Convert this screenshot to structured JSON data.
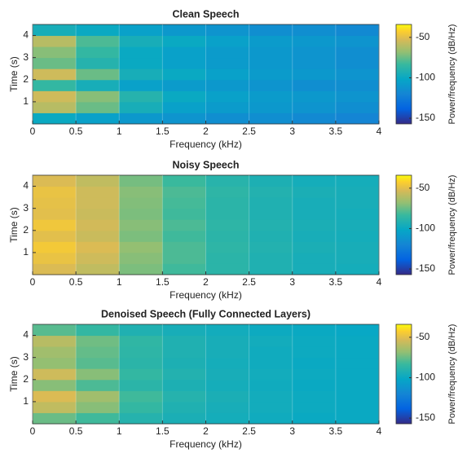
{
  "chart_data": [
    {
      "type": "heatmap",
      "title": "Clean Speech",
      "xlabel": "Frequency (kHz)",
      "ylabel": "Time (s)",
      "colorbar_label": "Power/frequency (dB/Hz)",
      "xlim": [
        0,
        4
      ],
      "ylim": [
        0,
        4.5
      ],
      "xticks": [
        0,
        0.5,
        1,
        1.5,
        2,
        2.5,
        3,
        3.5,
        4
      ],
      "yticks": [
        1,
        2,
        3,
        4
      ],
      "clim": [
        -157,
        -34
      ],
      "cticks": [
        -50,
        -100,
        -150
      ],
      "z": [
        [
          -100,
          -105,
          -110,
          -112,
          -115,
          -115,
          -118,
          -120
        ],
        [
          -60,
          -75,
          -95,
          -105,
          -108,
          -110,
          -112,
          -115
        ],
        [
          -55,
          -70,
          -90,
          -100,
          -105,
          -108,
          -110,
          -112
        ],
        [
          -85,
          -95,
          -105,
          -108,
          -110,
          -112,
          -115,
          -115
        ],
        [
          -55,
          -75,
          -95,
          -100,
          -105,
          -108,
          -110,
          -112
        ],
        [
          -75,
          -90,
          -100,
          -105,
          -108,
          -110,
          -112,
          -115
        ],
        [
          -70,
          -85,
          -100,
          -105,
          -108,
          -110,
          -112,
          -115
        ],
        [
          -60,
          -80,
          -95,
          -100,
          -105,
          -108,
          -110,
          -112
        ],
        [
          -95,
          -100,
          -105,
          -110,
          -112,
          -115,
          -115,
          -118
        ]
      ]
    },
    {
      "type": "heatmap",
      "title": "Noisy Speech",
      "xlabel": "Frequency (kHz)",
      "ylabel": "Time (s)",
      "colorbar_label": "Power/frequency (dB/Hz)",
      "xlim": [
        0,
        4
      ],
      "ylim": [
        0,
        4.5
      ],
      "xticks": [
        0,
        0.5,
        1,
        1.5,
        2,
        2.5,
        3,
        3.5,
        4
      ],
      "yticks": [
        1,
        2,
        3,
        4
      ],
      "clim": [
        -157,
        -34
      ],
      "cticks": [
        -50,
        -100,
        -150
      ],
      "z": [
        [
          -52,
          -58,
          -72,
          -82,
          -88,
          -92,
          -95,
          -96
        ],
        [
          -48,
          -55,
          -70,
          -80,
          -88,
          -92,
          -95,
          -95
        ],
        [
          -45,
          -52,
          -68,
          -80,
          -87,
          -91,
          -94,
          -95
        ],
        [
          -50,
          -56,
          -72,
          -82,
          -88,
          -92,
          -95,
          -96
        ],
        [
          -46,
          -54,
          -70,
          -80,
          -87,
          -91,
          -94,
          -95
        ],
        [
          -50,
          -56,
          -72,
          -82,
          -88,
          -92,
          -95,
          -96
        ],
        [
          -49,
          -55,
          -71,
          -81,
          -88,
          -92,
          -95,
          -95
        ],
        [
          -48,
          -55,
          -70,
          -80,
          -87,
          -91,
          -94,
          -95
        ],
        [
          -52,
          -58,
          -73,
          -83,
          -89,
          -93,
          -96,
          -96
        ]
      ]
    },
    {
      "type": "heatmap",
      "title": "Denoised Speech (Fully Connected Layers)",
      "xlabel": "Frequency (kHz)",
      "ylabel": "Time (s)",
      "colorbar_label": "Power/frequency (dB/Hz)",
      "xlim": [
        0,
        4
      ],
      "ylim": [
        0,
        4.5
      ],
      "xticks": [
        0,
        0.5,
        1,
        1.5,
        2,
        2.5,
        3,
        3.5,
        4
      ],
      "yticks": [
        1,
        2,
        3,
        4
      ],
      "clim": [
        -157,
        -34
      ],
      "cticks": [
        -50,
        -100,
        -150
      ],
      "z": [
        [
          -75,
          -82,
          -90,
          -94,
          -96,
          -98,
          -100,
          -100
        ],
        [
          -58,
          -70,
          -85,
          -92,
          -95,
          -97,
          -99,
          -100
        ],
        [
          -52,
          -65,
          -82,
          -90,
          -94,
          -97,
          -99,
          -100
        ],
        [
          -70,
          -80,
          -88,
          -93,
          -96,
          -98,
          -100,
          -100
        ],
        [
          -55,
          -70,
          -85,
          -91,
          -95,
          -97,
          -99,
          -100
        ],
        [
          -68,
          -78,
          -88,
          -93,
          -96,
          -98,
          -100,
          -100
        ],
        [
          -65,
          -76,
          -87,
          -92,
          -95,
          -98,
          -99,
          -100
        ],
        [
          -60,
          -74,
          -86,
          -92,
          -95,
          -97,
          -99,
          -100
        ],
        [
          -78,
          -85,
          -92,
          -95,
          -97,
          -99,
          -100,
          -101
        ]
      ]
    }
  ]
}
